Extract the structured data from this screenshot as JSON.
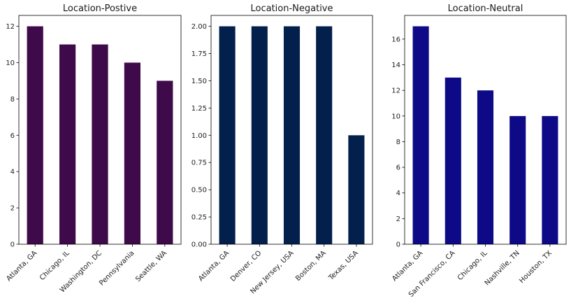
{
  "chart_data": [
    {
      "type": "bar",
      "title": "Location-Postive",
      "xlabel": "",
      "ylabel": "",
      "categories": [
        "Atlanta, GA",
        "Chicago, IL",
        "Washington, DC",
        "Pennsylvania",
        "Seattle, WA"
      ],
      "values": [
        12,
        11,
        11,
        10,
        9
      ],
      "ylim": [
        0,
        12.6
      ],
      "yticks": [
        0,
        2,
        4,
        6,
        8,
        10,
        12
      ],
      "ytick_labels": [
        "0",
        "2",
        "4",
        "6",
        "8",
        "10",
        "12"
      ],
      "color": "#3f0a4a",
      "grid": false
    },
    {
      "type": "bar",
      "title": "Location-Negative",
      "xlabel": "",
      "ylabel": "",
      "categories": [
        "Atlanta, GA",
        "Denver, CO",
        "New Jersey, USA",
        "Boston, MA",
        "Texas, USA"
      ],
      "values": [
        2,
        2,
        2,
        2,
        1
      ],
      "ylim": [
        0,
        2.1
      ],
      "yticks": [
        0,
        0.25,
        0.5,
        0.75,
        1,
        1.25,
        1.5,
        1.75,
        2
      ],
      "ytick_labels": [
        "0.00",
        "0.25",
        "0.50",
        "0.75",
        "1.00",
        "1.25",
        "1.50",
        "1.75",
        "2.00"
      ],
      "color": "#03204d",
      "grid": false
    },
    {
      "type": "bar",
      "title": "Location-Neutral",
      "xlabel": "",
      "ylabel": "",
      "categories": [
        "Atlanta, GA",
        "San Francisco, CA",
        "Chicago, IL",
        "Nashville, TN",
        "Houston, TX"
      ],
      "values": [
        17,
        13,
        12,
        10,
        10
      ],
      "ylim": [
        0,
        17.85
      ],
      "yticks": [
        0,
        2,
        4,
        6,
        8,
        10,
        12,
        14,
        16
      ],
      "ytick_labels": [
        "0",
        "2",
        "4",
        "6",
        "8",
        "10",
        "12",
        "14",
        "16"
      ],
      "color": "#0e0a87",
      "grid": false
    }
  ]
}
